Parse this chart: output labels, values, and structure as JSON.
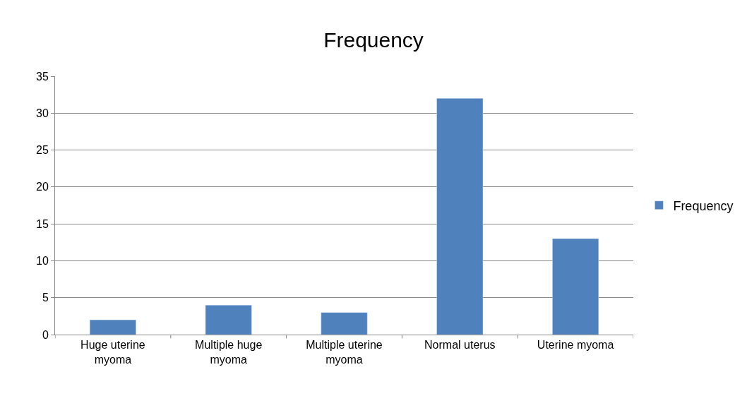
{
  "chart_data": {
    "type": "bar",
    "title": "Frequency",
    "categories": [
      "Huge uterine myoma",
      "Multiple huge myoma",
      "Multiple uterine myoma",
      "Normal uterus",
      "Uterine myoma"
    ],
    "series": [
      {
        "name": "Frequency",
        "color": "#4f81bd",
        "values": [
          2,
          4,
          3,
          32,
          13
        ]
      }
    ],
    "ylim": [
      0,
      35
    ],
    "yticks": [
      0,
      5,
      10,
      15,
      20,
      25,
      30,
      35
    ],
    "grid": "y",
    "legend": "center right"
  }
}
